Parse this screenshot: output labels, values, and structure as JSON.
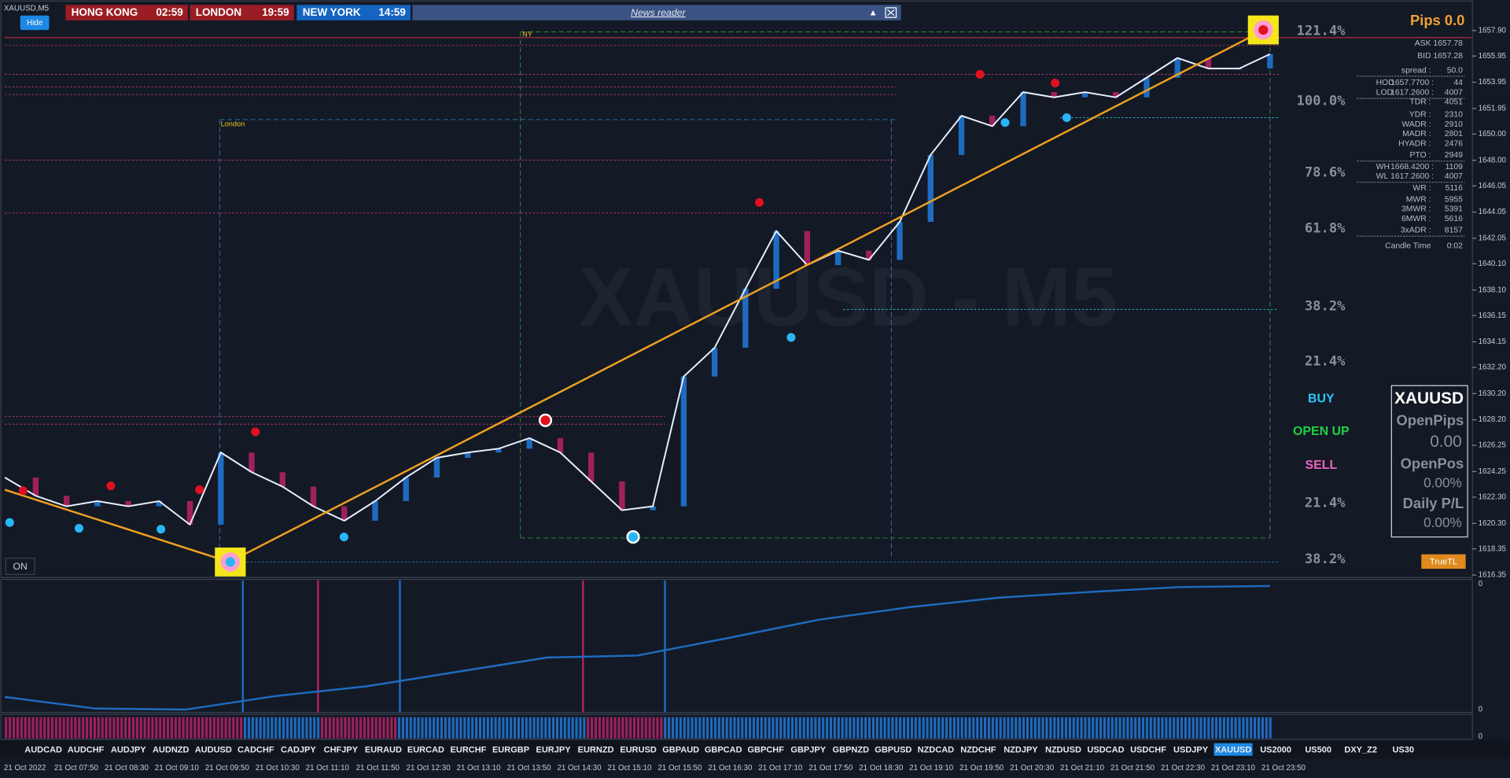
{
  "header": {
    "symbol": "XAUUSD,M5",
    "hide_button": "Hide",
    "clocks": [
      {
        "city": "HONG KONG",
        "time": "02:59"
      },
      {
        "city": "LONDON",
        "time": "19:59"
      },
      {
        "city": "NEW YORK",
        "time": "14:59"
      }
    ],
    "news_reader": "News reader"
  },
  "price_chart": {
    "type": "line",
    "watermark": "XAUUSD - M5",
    "sessions": [
      "London",
      "NY"
    ],
    "values": [
      1623.8,
      1622.4,
      1621.6,
      1622.0,
      1621.6,
      1622.0,
      1620.2,
      1625.7,
      1624.2,
      1623.1,
      1621.6,
      1620.5,
      1622.0,
      1623.8,
      1625.3,
      1625.7,
      1626.0,
      1626.8,
      1625.7,
      1623.5,
      1621.3,
      1621.6,
      1631.5,
      1633.7,
      1638.2,
      1642.6,
      1640.0,
      1641.1,
      1640.4,
      1643.3,
      1648.4,
      1651.4,
      1650.6,
      1653.2,
      1652.8,
      1653.2,
      1652.8,
      1654.3,
      1655.8,
      1655.0,
      1655.0,
      1656.1
    ],
    "ylim": [
      1616.1,
      1660.0
    ],
    "yticks": [
      {
        "value": 1657.9,
        "label": "1657.90"
      },
      1655.95,
      1653.95,
      1651.95,
      {
        "value": 1650,
        "label": "1650.00"
      },
      {
        "value": 1648,
        "label": "1648.00"
      },
      1646.05,
      1644.05,
      1642.05,
      {
        "value": 1640.1,
        "label": "1640.10"
      },
      {
        "value": 1638.1,
        "label": "1638.10"
      },
      1636.15,
      1634.15,
      {
        "value": 1632.2,
        "label": "1632.20"
      },
      {
        "value": 1630.2,
        "label": "1630.20"
      },
      {
        "value": 1628.2,
        "label": "1628.20"
      },
      1626.25,
      1624.25,
      {
        "value": 1622.3,
        "label": "1622.30"
      },
      {
        "value": 1620.3,
        "label": "1620.30"
      },
      1618.35,
      1616.35
    ],
    "fib_labels": [
      "121.4%",
      "100.0%",
      "78.6%",
      "61.8%",
      "38.2%",
      "21.4%",
      "21.4%",
      "38.2%"
    ],
    "on_button": "ON"
  },
  "indicator": {
    "values": [
      12.5,
      3.7,
      2.9,
      13.2,
      20.6,
      31.6,
      42.6,
      44.1,
      57.4,
      71.3,
      80.9,
      88.2,
      92.6,
      96.3,
      97.1
    ],
    "ylim": [
      0,
      100
    ],
    "axis_labels": [
      "0",
      "0",
      "0"
    ]
  },
  "side_panel": {
    "pips": "Pips 0.0",
    "rows": [
      {
        "label": "ASK",
        "value": "1657.78"
      },
      {
        "label": "BID",
        "value": "1657.28"
      },
      {
        "label": "spread :",
        "value": "50.0"
      },
      {
        "label": "HOD",
        "price": "1657.7700 :",
        "value": "44"
      },
      {
        "label": "LOD",
        "price": "1617.2600 :",
        "value": "4007"
      },
      {
        "label": "TDR :",
        "value": "4051"
      },
      {
        "label": "YDR :",
        "value": "2310"
      },
      {
        "label": "WADR :",
        "value": "2910"
      },
      {
        "label": "MADR :",
        "value": "2801"
      },
      {
        "label": "HYADR :",
        "value": "2476"
      },
      {
        "label": "PTO :",
        "value": "2949"
      },
      {
        "label": "WH",
        "price": "1668.4200 :",
        "value": "1109"
      },
      {
        "label": "WL",
        "price": "1617.2600 :",
        "value": "4007"
      },
      {
        "label": "WR :",
        "value": "5116"
      },
      {
        "label": "MWR :",
        "value": "5955"
      },
      {
        "label": "3MWR :",
        "value": "5391"
      },
      {
        "label": "6MWR :",
        "value": "5616"
      },
      {
        "label": "3xADR :",
        "value": "8157"
      },
      {
        "label": "Candle Time",
        "value": "0:02"
      }
    ],
    "signals": [
      "BUY",
      "OPEN UP",
      "SELL"
    ],
    "box": {
      "symbol": "XAUUSD",
      "open_pips_label": "OpenPips",
      "open_pips": "0.00",
      "open_pos_label": "OpenPos",
      "open_pos": "0.00%",
      "daily_pl_label": "Daily P/L",
      "daily_pl": "0.00%"
    },
    "truetl_button": "TrueTL"
  },
  "symbol_bar": {
    "symbols": [
      "AUDCAD",
      "AUDCHF",
      "AUDJPY",
      "AUDNZD",
      "AUDUSD",
      "CADCHF",
      "CADJPY",
      "CHFJPY",
      "EURAUD",
      "EURCAD",
      "EURCHF",
      "EURGBP",
      "EURJPY",
      "EURNZD",
      "EURUSD",
      "GBPAUD",
      "GBPCAD",
      "GBPCHF",
      "GBPJPY",
      "GBPNZD",
      "GBPUSD",
      "NZDCAD",
      "NZDCHF",
      "NZDJPY",
      "NZDUSD",
      "USDCAD",
      "USDCHF",
      "USDJPY",
      "XAUUSD",
      "US2000",
      "US500",
      "DXY_Z2",
      "US30"
    ],
    "active": "XAUUSD"
  },
  "time_axis": [
    "21 Oct 2022",
    "21 Oct 07:50",
    "21 Oct 08:30",
    "21 Oct 09:10",
    "21 Oct 09:50",
    "21 Oct 10:30",
    "21 Oct 11:10",
    "21 Oct 11:50",
    "21 Oct 12:30",
    "21 Oct 13:10",
    "21 Oct 13:50",
    "21 Oct 14:30",
    "21 Oct 15:10",
    "21 Oct 15:50",
    "21 Oct 16:30",
    "21 Oct 17:10",
    "21 Oct 17:50",
    "21 Oct 18:30",
    "21 Oct 19:10",
    "21 Oct 19:50",
    "21 Oct 20:30",
    "21 Oct 21:10",
    "21 Oct 21:50",
    "21 Oct 22:30",
    "21 Oct 23:10",
    "21 Oct 23:50"
  ]
}
